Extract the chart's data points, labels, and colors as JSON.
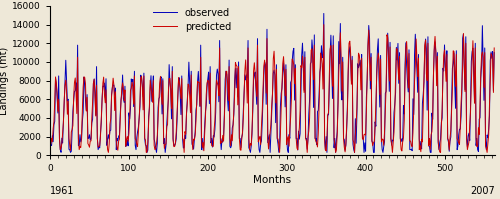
{
  "title": "",
  "xlabel": "Months",
  "ylabel": "Landings (mt)",
  "xlim": [
    0,
    564
  ],
  "ylim": [
    0,
    16000
  ],
  "xticks": [
    0,
    100,
    200,
    300,
    400,
    500
  ],
  "yticks": [
    0,
    2000,
    4000,
    6000,
    8000,
    10000,
    12000,
    14000,
    16000
  ],
  "x_left_label": "1961",
  "x_right_label": "2007",
  "legend_observed": "observed",
  "legend_predicted": "predicted",
  "observed_color": "#0000BB",
  "predicted_color": "#CC0000",
  "background_color": "#EEE8D8",
  "n_months": 564,
  "seed": 42
}
